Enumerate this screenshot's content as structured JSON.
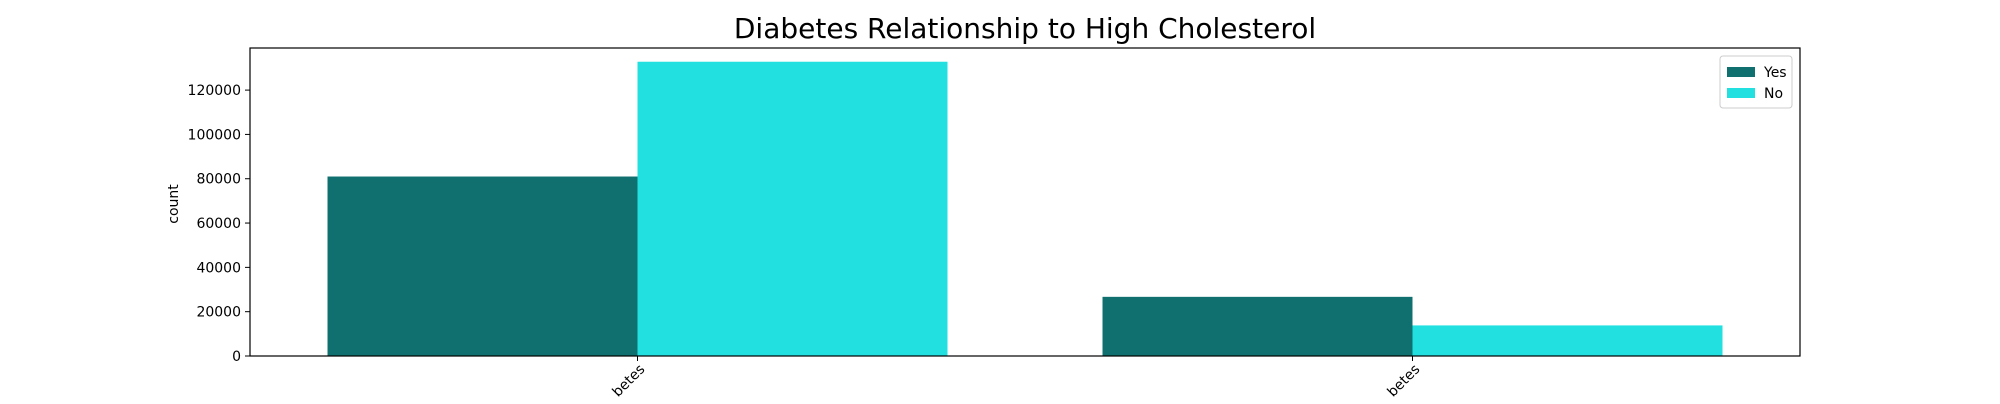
{
  "chart_data": {
    "type": "bar",
    "title": "Diabetes Relationship to High Cholesterol",
    "xlabel": "",
    "ylabel": "count",
    "categories": [
      "No Diabetes",
      "Diabetes"
    ],
    "visible_category_labels": [
      "betes",
      "betes"
    ],
    "series": [
      {
        "name": "Yes",
        "color": "#107070",
        "values": [
          81000,
          26700
        ]
      },
      {
        "name": "No",
        "color": "#22e0e0",
        "values": [
          132800,
          13800
        ]
      }
    ],
    "ylim": [
      0,
      139000
    ],
    "yticks": [
      0,
      20000,
      40000,
      60000,
      80000,
      100000,
      120000
    ],
    "ytick_labels": [
      "0",
      "20000",
      "40000",
      "60000",
      "80000",
      "100000",
      "120000"
    ],
    "grid": false,
    "legend_position": "top-right"
  }
}
